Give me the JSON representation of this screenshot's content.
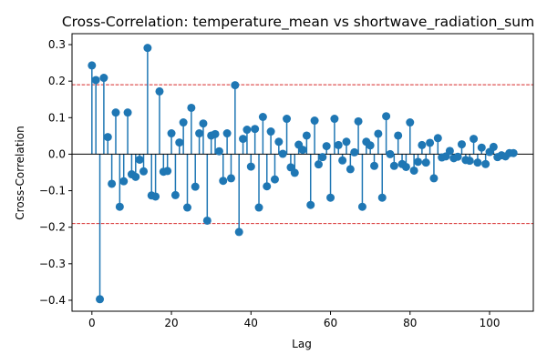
{
  "chart_data": {
    "type": "stem",
    "title": "Cross-Correlation: temperature_mean vs shortwave_radiation_sum",
    "xlabel": "Lag",
    "ylabel": "Cross-Correlation",
    "xlim": [
      -5,
      111
    ],
    "ylim": [
      -0.43,
      0.33
    ],
    "xticks": [
      0,
      20,
      40,
      60,
      80,
      100
    ],
    "yticks": [
      -0.4,
      -0.3,
      -0.2,
      -0.1,
      0.0,
      0.1,
      0.2,
      0.3
    ],
    "ytick_labels": [
      "−0.4",
      "−0.3",
      "−0.2",
      "−0.1",
      "0.0",
      "0.1",
      "0.2",
      "0.3"
    ],
    "confidence_bounds": [
      0.19,
      -0.19
    ],
    "stem_color": "#1f77b4",
    "bound_color": "#d62728",
    "baseline_color": "#000000",
    "lags": [
      0,
      1,
      2,
      3,
      4,
      5,
      6,
      7,
      8,
      9,
      10,
      11,
      12,
      13,
      14,
      15,
      16,
      17,
      18,
      19,
      20,
      21,
      22,
      23,
      24,
      25,
      26,
      27,
      28,
      29,
      30,
      31,
      32,
      33,
      34,
      35,
      36,
      37,
      38,
      39,
      40,
      41,
      42,
      43,
      44,
      45,
      46,
      47,
      48,
      49,
      50,
      51,
      52,
      53,
      54,
      55,
      56,
      57,
      58,
      59,
      60,
      61,
      62,
      63,
      64,
      65,
      66,
      67,
      68,
      69,
      70,
      71,
      72,
      73,
      74,
      75,
      76,
      77,
      78,
      79,
      80,
      81,
      82,
      83,
      84,
      85,
      86,
      87,
      88,
      89,
      90,
      91,
      92,
      93,
      94,
      95,
      96,
      97,
      98,
      99,
      100,
      101,
      102,
      103,
      104,
      105,
      106
    ],
    "values": [
      0.243,
      0.203,
      -0.397,
      0.209,
      0.047,
      -0.081,
      0.114,
      -0.144,
      -0.074,
      0.114,
      -0.055,
      -0.062,
      -0.015,
      -0.047,
      0.291,
      -0.113,
      -0.116,
      0.172,
      -0.048,
      -0.046,
      0.057,
      -0.112,
      0.032,
      0.087,
      -0.146,
      0.127,
      -0.089,
      0.057,
      0.084,
      -0.182,
      0.051,
      0.055,
      0.008,
      -0.073,
      0.057,
      -0.066,
      0.189,
      -0.213,
      0.042,
      0.067,
      -0.034,
      0.069,
      -0.146,
      0.102,
      -0.088,
      0.062,
      -0.069,
      0.034,
      0.001,
      0.097,
      -0.036,
      -0.051,
      0.026,
      0.012,
      0.051,
      -0.139,
      0.092,
      -0.028,
      -0.008,
      0.022,
      -0.119,
      0.097,
      0.025,
      -0.017,
      0.034,
      -0.041,
      0.005,
      0.09,
      -0.144,
      0.034,
      0.024,
      -0.032,
      0.056,
      -0.119,
      0.104,
      0.0,
      -0.032,
      0.051,
      -0.027,
      -0.035,
      0.087,
      -0.045,
      -0.021,
      0.025,
      -0.023,
      0.031,
      -0.066,
      0.044,
      -0.009,
      -0.006,
      0.009,
      -0.011,
      -0.007,
      0.027,
      -0.016,
      -0.018,
      0.042,
      -0.023,
      0.018,
      -0.027,
      0.006,
      0.02,
      -0.008,
      -0.003,
      -0.006,
      0.003,
      0.003
    ]
  }
}
